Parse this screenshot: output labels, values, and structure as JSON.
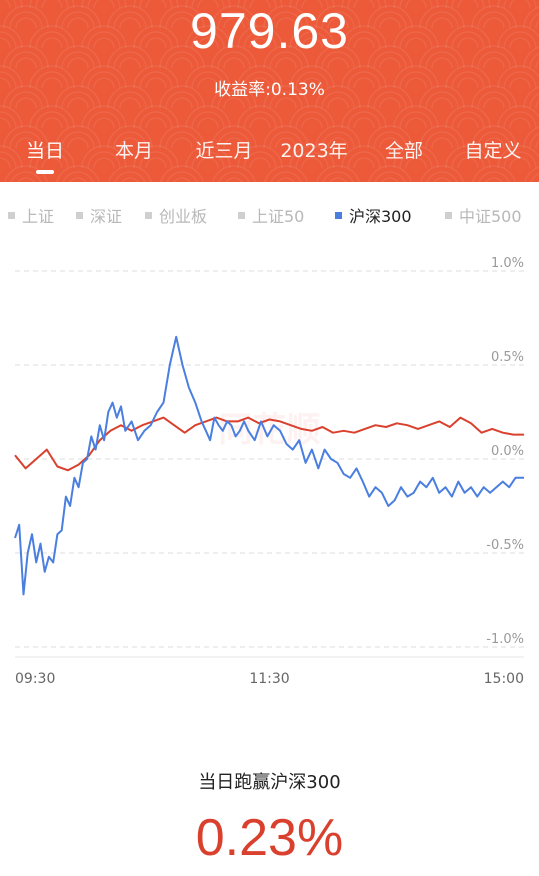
{
  "header": {
    "amount": "979.63",
    "rate_text": "收益率:0.13%",
    "tabs": [
      "当日",
      "本月",
      "近三月",
      "2023年",
      "全部",
      "自定义"
    ],
    "active_tab": 0
  },
  "colors": {
    "header_bg": "#ec5a3a",
    "fund_line": "#d9412e",
    "index_line": "#4a7fe0",
    "summary_value": "#d9412e"
  },
  "legend": {
    "items": [
      "上证",
      "深证",
      "创业板",
      "上证50",
      "沪深300",
      "中证500"
    ],
    "active": 4
  },
  "chart_data": {
    "type": "line",
    "x_ticks": [
      "09:30",
      "11:30",
      "15:00"
    ],
    "y_tick_labels": [
      "1.0%",
      "0.5%",
      "0.0%",
      "-0.5%",
      "-1.0%"
    ],
    "ylim": [
      -1.0,
      1.0
    ],
    "grid": true,
    "watermark": "同花顺",
    "series": [
      {
        "name": "fund",
        "color": "#d9412e",
        "x": [
          0,
          5,
          10,
          15,
          20,
          25,
          30,
          35,
          40,
          45,
          50,
          55,
          60,
          65,
          70,
          75,
          80,
          85,
          90,
          95,
          100,
          105,
          110,
          115,
          120,
          125,
          130,
          135,
          140,
          145,
          150,
          155,
          160,
          165,
          170,
          175,
          180,
          185,
          190,
          195,
          200,
          205,
          210,
          215,
          220,
          225,
          230,
          235,
          240
        ],
        "y": [
          0.02,
          -0.05,
          0.0,
          0.05,
          -0.04,
          -0.06,
          -0.03,
          0.02,
          0.1,
          0.15,
          0.18,
          0.15,
          0.18,
          0.2,
          0.22,
          0.18,
          0.14,
          0.18,
          0.2,
          0.22,
          0.2,
          0.2,
          0.22,
          0.19,
          0.21,
          0.2,
          0.18,
          0.16,
          0.15,
          0.17,
          0.14,
          0.15,
          0.14,
          0.16,
          0.18,
          0.17,
          0.19,
          0.18,
          0.16,
          0.18,
          0.2,
          0.17,
          0.22,
          0.19,
          0.14,
          0.16,
          0.14,
          0.13,
          0.13
        ]
      },
      {
        "name": "沪深300",
        "color": "#4a7fe0",
        "x": [
          0,
          2,
          4,
          6,
          8,
          10,
          12,
          14,
          16,
          18,
          20,
          22,
          24,
          26,
          28,
          30,
          32,
          34,
          36,
          38,
          40,
          42,
          44,
          46,
          48,
          50,
          52,
          55,
          58,
          61,
          64,
          67,
          70,
          73,
          76,
          79,
          82,
          85,
          88,
          90,
          92,
          94,
          96,
          98,
          100,
          102,
          104,
          106,
          108,
          110,
          113,
          116,
          119,
          122,
          125,
          128,
          131,
          134,
          137,
          140,
          143,
          146,
          149,
          152,
          155,
          158,
          161,
          164,
          167,
          170,
          173,
          176,
          179,
          182,
          185,
          188,
          191,
          194,
          197,
          200,
          203,
          206,
          209,
          212,
          215,
          218,
          221,
          224,
          227,
          230,
          233,
          236,
          238,
          240
        ],
        "y": [
          -0.42,
          -0.35,
          -0.72,
          -0.5,
          -0.4,
          -0.55,
          -0.45,
          -0.6,
          -0.52,
          -0.55,
          -0.4,
          -0.38,
          -0.2,
          -0.25,
          -0.1,
          -0.15,
          -0.02,
          0.0,
          0.12,
          0.05,
          0.18,
          0.1,
          0.25,
          0.3,
          0.22,
          0.28,
          0.15,
          0.2,
          0.1,
          0.15,
          0.18,
          0.25,
          0.3,
          0.5,
          0.65,
          0.5,
          0.38,
          0.3,
          0.2,
          0.15,
          0.1,
          0.22,
          0.18,
          0.15,
          0.2,
          0.18,
          0.12,
          0.15,
          0.2,
          0.15,
          0.1,
          0.2,
          0.12,
          0.18,
          0.15,
          0.08,
          0.05,
          0.1,
          -0.02,
          0.05,
          -0.05,
          0.05,
          0.0,
          -0.02,
          -0.08,
          -0.1,
          -0.05,
          -0.12,
          -0.2,
          -0.15,
          -0.18,
          -0.25,
          -0.22,
          -0.15,
          -0.2,
          -0.18,
          -0.12,
          -0.15,
          -0.1,
          -0.18,
          -0.15,
          -0.2,
          -0.12,
          -0.18,
          -0.15,
          -0.2,
          -0.15,
          -0.18,
          -0.15,
          -0.12,
          -0.15,
          -0.1,
          -0.1,
          -0.1
        ]
      }
    ]
  },
  "summary": {
    "label": "当日跑赢沪深300",
    "value": "0.23%"
  }
}
